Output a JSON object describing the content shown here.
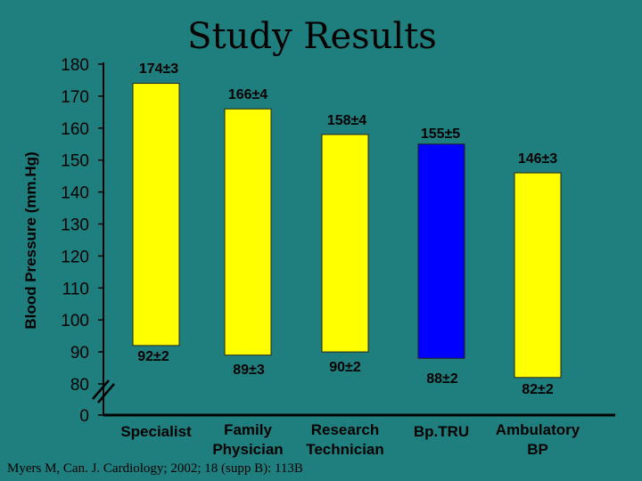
{
  "chart_data": {
    "type": "bar",
    "title": "Study Results",
    "ylabel": "Blood Pressure (mm.Hg)",
    "source": "Myers M, Can. J. Cardiology; 2002; 18 (supp B): 113B",
    "y_ticks": [
      0,
      80,
      90,
      100,
      110,
      120,
      130,
      140,
      150,
      160,
      170,
      180
    ],
    "axis_break": "between 0 and 80",
    "ylim": [
      0,
      180
    ],
    "categories": [
      {
        "lines": [
          "Specialist"
        ]
      },
      {
        "lines": [
          "Family",
          "Physician"
        ]
      },
      {
        "lines": [
          "Research",
          "Technician"
        ]
      },
      {
        "lines": [
          "Bp.TRU"
        ]
      },
      {
        "lines": [
          "Ambulatory",
          "BP"
        ]
      }
    ],
    "systolic": [
      174,
      166,
      158,
      155,
      146
    ],
    "systolic_labels": [
      "174±3",
      "166±4",
      "158±4",
      "155±5",
      "146±3"
    ],
    "diastolic": [
      92,
      89,
      90,
      88,
      82
    ],
    "diastolic_labels": [
      "92±2",
      "89±3",
      "90±2",
      "88±2",
      "82±2"
    ],
    "bar_colors": [
      "#ffff00",
      "#ffff00",
      "#ffff00",
      "#0000ff",
      "#ffff00"
    ],
    "background": "#1f7f7f",
    "grid": false
  }
}
